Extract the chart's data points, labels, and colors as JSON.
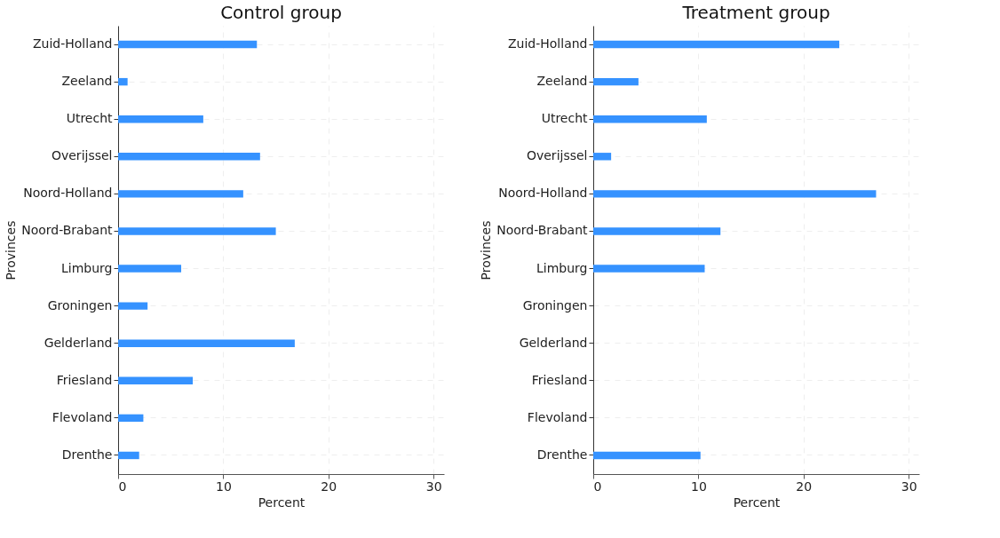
{
  "chart_data": [
    {
      "type": "bar",
      "orientation": "horizontal",
      "title": "Control group",
      "xlabel": "Percent",
      "ylabel": "Provinces",
      "categories": [
        "Zuid-Holland",
        "Zeeland",
        "Utrecht",
        "Overijssel",
        "Noord-Holland",
        "Noord-Brabant",
        "Limburg",
        "Groningen",
        "Gelderland",
        "Friesland",
        "Flevoland",
        "Drenthe"
      ],
      "values": [
        13.2,
        0.9,
        8.1,
        13.5,
        11.9,
        15.0,
        6.0,
        2.8,
        16.8,
        7.1,
        2.4,
        2.0
      ],
      "color": "#3592ff",
      "xlim": [
        0,
        31
      ],
      "xticks": [
        0,
        10,
        20,
        30
      ],
      "grid": true
    },
    {
      "type": "bar",
      "orientation": "horizontal",
      "title": "Treatment group",
      "xlabel": "Percent",
      "ylabel": "Provinces",
      "categories": [
        "Zuid-Holland",
        "Zeeland",
        "Utrecht",
        "Overijssel",
        "Noord-Holland",
        "Noord-Brabant",
        "Limburg",
        "Groningen",
        "Gelderland",
        "Friesland",
        "Flevoland",
        "Drenthe"
      ],
      "values": [
        23.4,
        4.3,
        10.8,
        1.7,
        26.9,
        12.1,
        10.6,
        0,
        0,
        0,
        0,
        10.2
      ],
      "color": "#3592ff",
      "xlim": [
        0,
        31
      ],
      "xticks": [
        0,
        10,
        20,
        30
      ],
      "grid": true
    }
  ]
}
